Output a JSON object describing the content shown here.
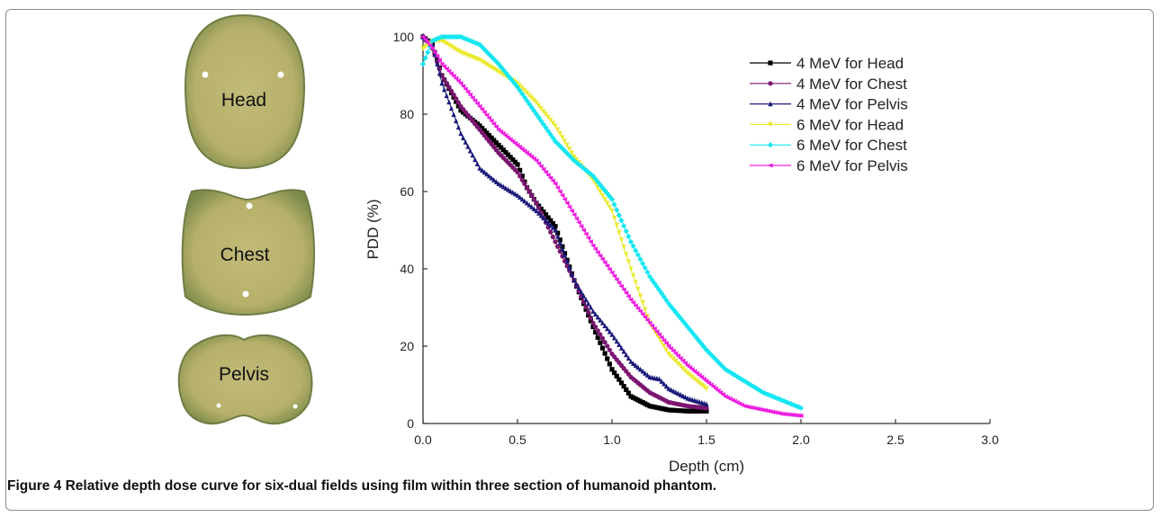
{
  "caption": {
    "label": "Figure 4",
    "text": "Relative depth dose curve for six-dual fields using film within three section of humanoid phantom."
  },
  "phantom_sections": [
    "Head",
    "Chest",
    "Pelvis"
  ],
  "colors": {
    "phantom_fill": "#b9b46e",
    "phantom_edge": "#6f7d44"
  },
  "chart_data": {
    "type": "line",
    "xlabel": "Depth (cm)",
    "ylabel": "PDD (%)",
    "xlim": [
      0.0,
      3.0
    ],
    "ylim": [
      0,
      100
    ],
    "xticks": [
      "0.0",
      "0.5",
      "1.0",
      "1.5",
      "2.0",
      "2.5",
      "3.0"
    ],
    "yticks": [
      "0",
      "20",
      "40",
      "60",
      "80",
      "100"
    ],
    "legend_position": "top-right",
    "series": [
      {
        "name": "4 MeV for Head",
        "color": "#000000",
        "marker": "square",
        "x": [
          0.0,
          0.05,
          0.1,
          0.2,
          0.3,
          0.4,
          0.5,
          0.55,
          0.6,
          0.7,
          0.8,
          0.9,
          1.0,
          1.1,
          1.2,
          1.3,
          1.4,
          1.5
        ],
        "y": [
          100,
          98,
          90,
          81,
          77,
          72,
          67,
          61,
          57,
          51,
          37,
          25,
          14,
          7,
          4.5,
          3.5,
          3.2,
          3.2
        ]
      },
      {
        "name": "4 MeV for Chest",
        "color": "#7b1570",
        "marker": "circle",
        "x": [
          0.0,
          0.05,
          0.1,
          0.2,
          0.3,
          0.4,
          0.5,
          0.6,
          0.7,
          0.8,
          0.9,
          1.0,
          1.1,
          1.2,
          1.3,
          1.4,
          1.5
        ],
        "y": [
          100,
          97,
          90,
          82,
          76,
          70,
          65,
          57,
          47,
          37,
          26,
          18,
          12,
          8,
          5.5,
          4.5,
          4
        ]
      },
      {
        "name": "4 MeV for Pelvis",
        "color": "#1a1a7a",
        "marker": "triangle-up",
        "x": [
          0.0,
          0.05,
          0.1,
          0.2,
          0.3,
          0.4,
          0.5,
          0.6,
          0.7,
          0.8,
          0.9,
          1.0,
          1.1,
          1.2,
          1.25,
          1.3,
          1.4,
          1.5
        ],
        "y": [
          100,
          98,
          88,
          75,
          66,
          62,
          59,
          55,
          50,
          37,
          29,
          23,
          16,
          12,
          11.5,
          9,
          6.5,
          5
        ]
      },
      {
        "name": "6 MeV for Head",
        "color": "#eaea2e",
        "marker": "triangle-down",
        "x": [
          0.0,
          0.05,
          0.1,
          0.2,
          0.3,
          0.4,
          0.5,
          0.6,
          0.7,
          0.8,
          0.9,
          1.0,
          1.1,
          1.2,
          1.3,
          1.4,
          1.5
        ],
        "y": [
          97,
          99,
          99,
          96,
          94,
          91,
          88,
          83,
          77,
          69,
          63,
          55,
          40,
          26,
          18,
          13,
          9
        ]
      },
      {
        "name": "6 MeV for Chest",
        "color": "#14e6f2",
        "marker": "diamond",
        "x": [
          0.0,
          0.05,
          0.1,
          0.2,
          0.3,
          0.4,
          0.5,
          0.6,
          0.7,
          0.8,
          0.9,
          1.0,
          1.1,
          1.2,
          1.3,
          1.4,
          1.5,
          1.6,
          1.7,
          1.8,
          1.9,
          2.0
        ],
        "y": [
          93,
          99,
          100,
          100,
          98,
          93,
          87,
          80,
          73,
          68,
          64,
          58,
          47,
          38,
          31,
          25,
          19,
          14,
          11,
          8,
          6,
          4
        ]
      },
      {
        "name": "6 MeV for Pelvis",
        "color": "#ee1ee0",
        "marker": "triangle-left",
        "x": [
          0.0,
          0.05,
          0.1,
          0.2,
          0.3,
          0.4,
          0.5,
          0.6,
          0.7,
          0.8,
          0.9,
          1.0,
          1.1,
          1.2,
          1.3,
          1.4,
          1.5,
          1.6,
          1.7,
          1.8,
          1.9,
          2.0
        ],
        "y": [
          100,
          97,
          93,
          88,
          82,
          76,
          72,
          68,
          62,
          54,
          46,
          39,
          32,
          26,
          20,
          15,
          11,
          7,
          4.5,
          3.5,
          2.5,
          2
        ]
      }
    ]
  }
}
